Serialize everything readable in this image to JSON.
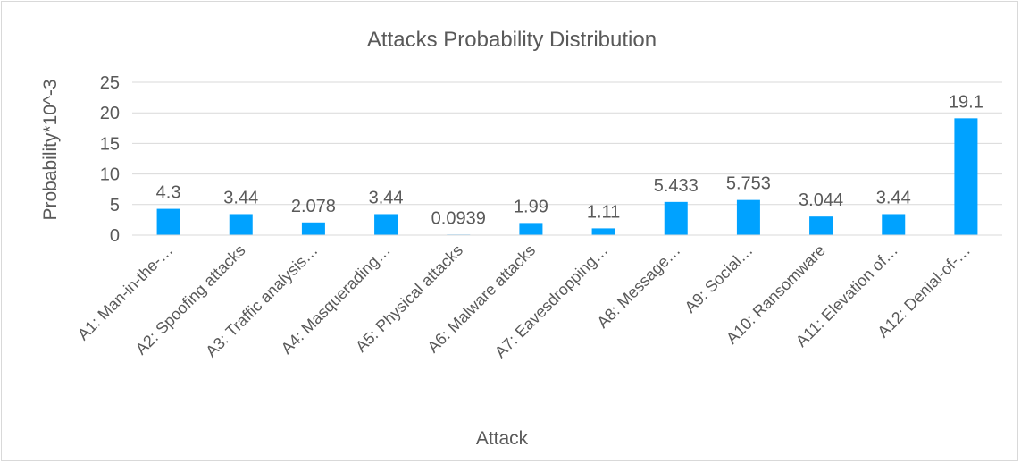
{
  "chart_data": {
    "type": "bar",
    "title": "Attacks Probability Distribution",
    "xlabel": "Attack",
    "ylabel": "Probability*10^-3",
    "ylim": [
      0,
      25
    ],
    "yticks": [
      0,
      5,
      10,
      15,
      20,
      25
    ],
    "grid": true,
    "legend": "none",
    "bar_color": "#00a2ff",
    "categories": [
      "A1: Man-in-the-…",
      "A2: Spoofing attacks",
      "A3: Traffic analysis…",
      "A4: Masquerading…",
      "A5: Physical attacks",
      "A6: Malware attacks",
      "A7: Eavesdropping…",
      "A8: Message…",
      "A9: Social…",
      "A10: Ransomware",
      "A11: Elevation of…",
      "A12: Denial-of-…"
    ],
    "values": [
      4.3,
      3.44,
      2.078,
      3.44,
      0.0939,
      1.99,
      1.11,
      5.433,
      5.753,
      3.044,
      3.44,
      19.1
    ],
    "data_labels": [
      "4.3",
      "3.44",
      "2.078",
      "3.44",
      "0.0939",
      "1.99",
      "1.11",
      "5.433",
      "5.753",
      "3.044",
      "3.44",
      "19.1"
    ]
  }
}
